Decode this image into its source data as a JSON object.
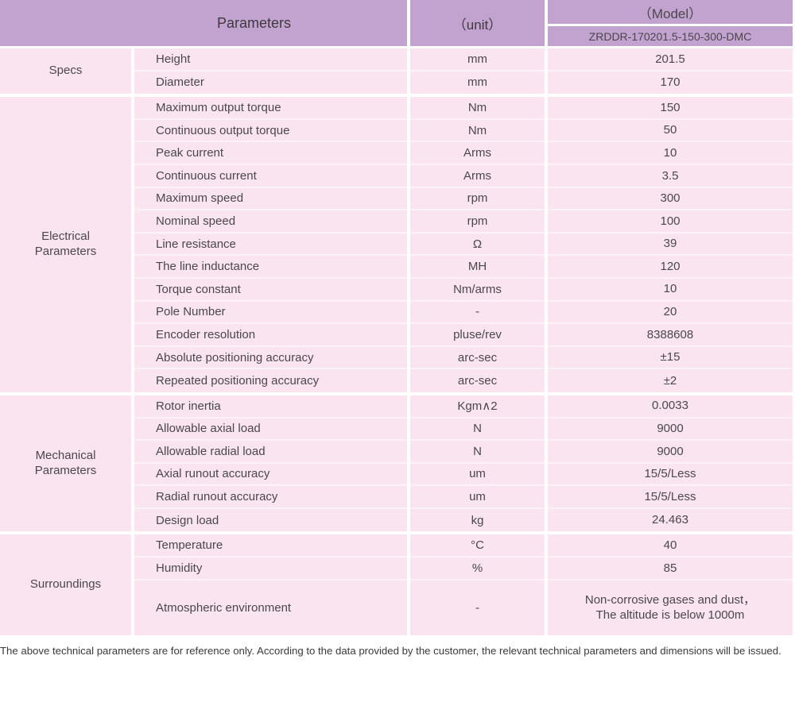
{
  "table": {
    "header": {
      "parameters_label": "Parameters",
      "unit_label": "（unit）",
      "model_label": "（Model）",
      "model_value": "ZRDDR-170201.5-150-300-DMC"
    },
    "sections": [
      {
        "id": "specs",
        "label": "Specs",
        "rows": [
          {
            "name": "Height",
            "unit": "mm",
            "value": "201.5"
          },
          {
            "name": "Diameter",
            "unit": "mm",
            "value": "170"
          }
        ]
      },
      {
        "id": "electrical-parameters",
        "label": "Electrical\nParameters",
        "rows": [
          {
            "name": "Maximum output torque",
            "unit": "Nm",
            "value": "150"
          },
          {
            "name": "Continuous output torque",
            "unit": "Nm",
            "value": "50"
          },
          {
            "name": "Peak current",
            "unit": "Arms",
            "value": "10"
          },
          {
            "name": "Continuous current",
            "unit": "Arms",
            "value": "3.5"
          },
          {
            "name": "Maximum speed",
            "unit": "rpm",
            "value": "300"
          },
          {
            "name": "Nominal speed",
            "unit": "rpm",
            "value": "100"
          },
          {
            "name": "Line resistance",
            "unit": "Ω",
            "value": "39"
          },
          {
            "name": "The line inductance",
            "unit": "MH",
            "value": "120"
          },
          {
            "name": "Torque constant",
            "unit": "Nm/arms",
            "value": "10"
          },
          {
            "name": "Pole Number",
            "unit": "-",
            "value": "20"
          },
          {
            "name": "Encoder resolution",
            "unit": "pluse/rev",
            "value": "8388608"
          },
          {
            "name": "Absolute positioning accuracy",
            "unit": "arc-sec",
            "value": "±15"
          },
          {
            "name": "Repeated positioning accuracy",
            "unit": "arc-sec",
            "value": "±2"
          }
        ]
      },
      {
        "id": "mechanical-parameters",
        "label": "Mechanical\nParameters",
        "rows": [
          {
            "name": "Rotor inertia",
            "unit": "Kgm∧2",
            "value": "0.0033"
          },
          {
            "name": "Allowable axial load",
            "unit": "N",
            "value": "9000"
          },
          {
            "name": "Allowable radial load",
            "unit": "N",
            "value": "9000"
          },
          {
            "name": "Axial runout accuracy",
            "unit": "um",
            "value": "15/5/Less"
          },
          {
            "name": "Radial runout accuracy",
            "unit": "um",
            "value": "15/5/Less"
          },
          {
            "name": "Design load",
            "unit": "kg",
            "value": "24.463"
          }
        ]
      },
      {
        "id": "surroundings",
        "label": "Surroundings",
        "rows": [
          {
            "name": "Temperature",
            "unit": "°C",
            "value": "40"
          },
          {
            "name": "Humidity",
            "unit": "%",
            "value": "85"
          },
          {
            "name": "Atmospheric environment",
            "unit": "-",
            "value": "Non-corrosive gases and dust，\nThe altitude is below 1000m",
            "tall": true
          }
        ]
      }
    ],
    "colors": {
      "header_purple": "#c2a2ce",
      "body_pink": "#fae4ef",
      "row_separator": "#fdf2f8",
      "gap_white": "#ffffff"
    }
  },
  "footer": {
    "note": "The above technical parameters are for reference only. According to the data provided by the customer, the relevant technical parameters and dimensions will be issued."
  }
}
